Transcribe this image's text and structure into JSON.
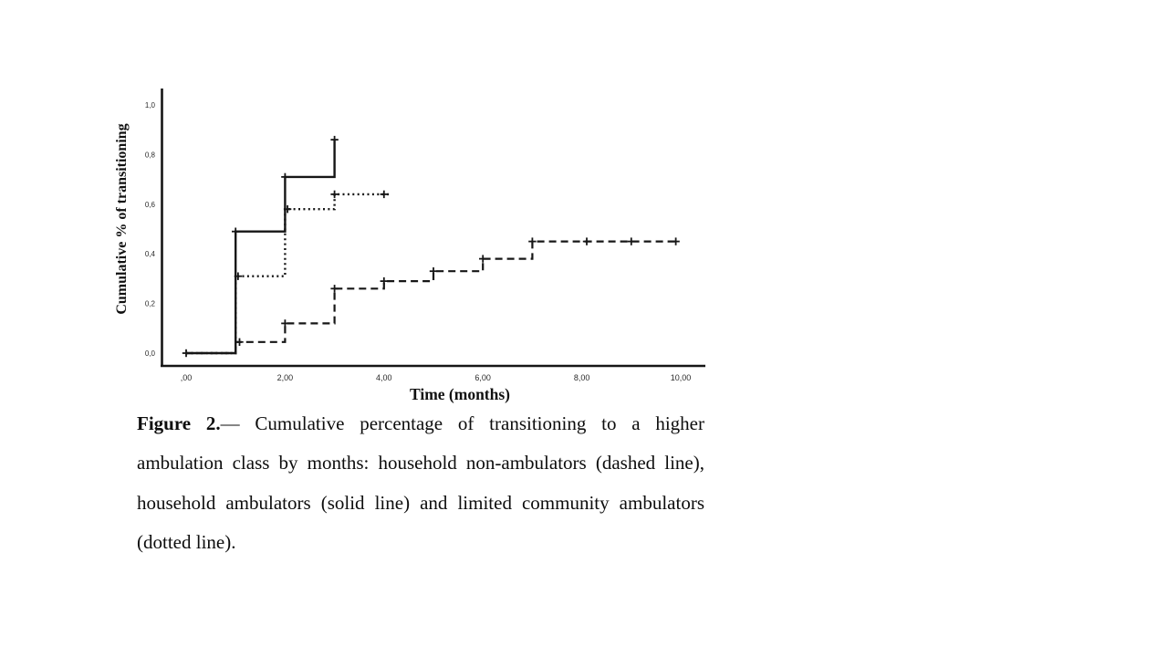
{
  "caption": {
    "label": "Figure 2.",
    "body": "— Cumulative percentage of transitioning to a higher ambulation class by months: household non-ambulators (dashed line), household ambulators (solid line) and limited community ambulators (dotted line)."
  },
  "chart_data": {
    "type": "line",
    "subtype": "step-function (Kaplan-Meier style cumulative incidence with censor '+' marks)",
    "title": "",
    "xlabel": "Time (months)",
    "ylabel": "Cumulative % of transitioning",
    "xlim": [
      -0.3,
      10.6
    ],
    "ylim": [
      0,
      1.05
    ],
    "grid": false,
    "legend_position": "none (line styles identified in caption)",
    "axis_color": "#161616",
    "xticks": [
      {
        "value": 0,
        "label": ",00"
      },
      {
        "value": 2,
        "label": "2,00"
      },
      {
        "value": 4,
        "label": "4,00"
      },
      {
        "value": 6,
        "label": "6,00"
      },
      {
        "value": 8,
        "label": "8,00"
      },
      {
        "value": 10,
        "label": "10,00"
      }
    ],
    "yticks": [
      {
        "value": 0.0,
        "label": "0,0"
      },
      {
        "value": 0.2,
        "label": "0,2"
      },
      {
        "value": 0.4,
        "label": "0,4"
      },
      {
        "value": 0.6,
        "label": "0,6"
      },
      {
        "value": 0.8,
        "label": "0,8"
      },
      {
        "value": 1.0,
        "label": "1,0"
      }
    ],
    "series": [
      {
        "name": "household non-ambulators",
        "line_style": "dashed",
        "color": "#161616",
        "steps": [
          [
            0,
            0
          ],
          [
            1,
            0.045
          ],
          [
            2,
            0.12
          ],
          [
            3,
            0.26
          ],
          [
            4,
            0.29
          ],
          [
            5,
            0.33
          ],
          [
            6,
            0.38
          ],
          [
            7,
            0.45
          ]
        ],
        "end_x": 9.95,
        "censor_marks": [
          [
            1.08,
            0.045
          ],
          [
            2,
            0.12
          ],
          [
            3,
            0.26
          ],
          [
            4,
            0.29
          ],
          [
            5,
            0.33
          ],
          [
            6,
            0.38
          ],
          [
            7,
            0.45
          ],
          [
            8.1,
            0.45
          ],
          [
            9,
            0.45
          ],
          [
            9.9,
            0.45
          ]
        ]
      },
      {
        "name": "limited community ambulators",
        "line_style": "dotted",
        "color": "#161616",
        "steps": [
          [
            0,
            0
          ],
          [
            1,
            0.31
          ],
          [
            2,
            0.58
          ],
          [
            3,
            0.64
          ]
        ],
        "end_x": 4.1,
        "censor_marks": [
          [
            1.05,
            0.31
          ],
          [
            2.05,
            0.58
          ],
          [
            3,
            0.64
          ],
          [
            4,
            0.64
          ]
        ]
      },
      {
        "name": "household ambulators",
        "line_style": "solid",
        "color": "#161616",
        "steps": [
          [
            0,
            0
          ],
          [
            1,
            0.49
          ],
          [
            2,
            0.71
          ],
          [
            3,
            0.86
          ]
        ],
        "end_x": 3.0,
        "censor_marks": [
          [
            0,
            0
          ],
          [
            1,
            0.49
          ],
          [
            2,
            0.71
          ],
          [
            3,
            0.86
          ]
        ]
      }
    ]
  }
}
